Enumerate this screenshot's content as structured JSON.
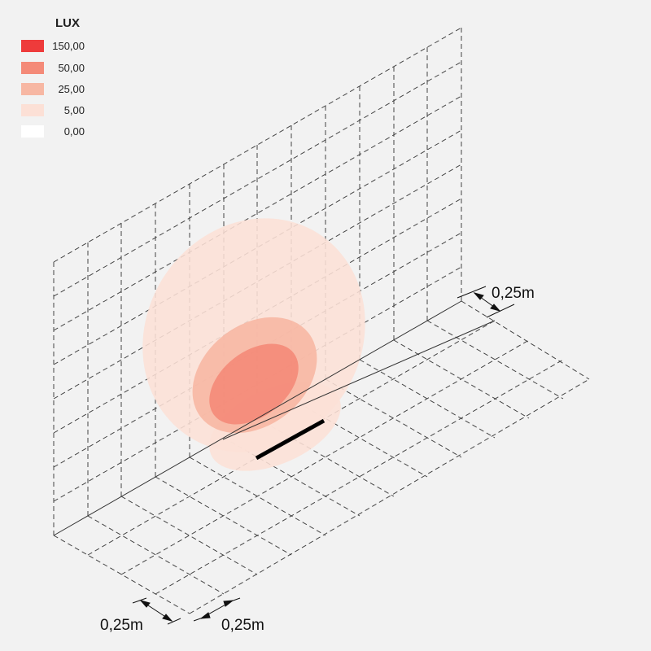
{
  "legend": {
    "title": "LUX",
    "items": [
      {
        "value": "150,00",
        "color": "#ee3b3b"
      },
      {
        "value": "50,00",
        "color": "#f48a78"
      },
      {
        "value": "25,00",
        "color": "#f7b7a3"
      },
      {
        "value": "5,00",
        "color": "#fce0d6"
      },
      {
        "value": "0,00",
        "color": "#ffffff"
      }
    ]
  },
  "dimensions": {
    "right_label": "0,25m",
    "bottom_left_label": "0,25m",
    "bottom_right_label": "0,25m"
  },
  "colors": {
    "background": "#f2f2f2",
    "grid_line": "#444444",
    "fixture": "#000000"
  }
}
